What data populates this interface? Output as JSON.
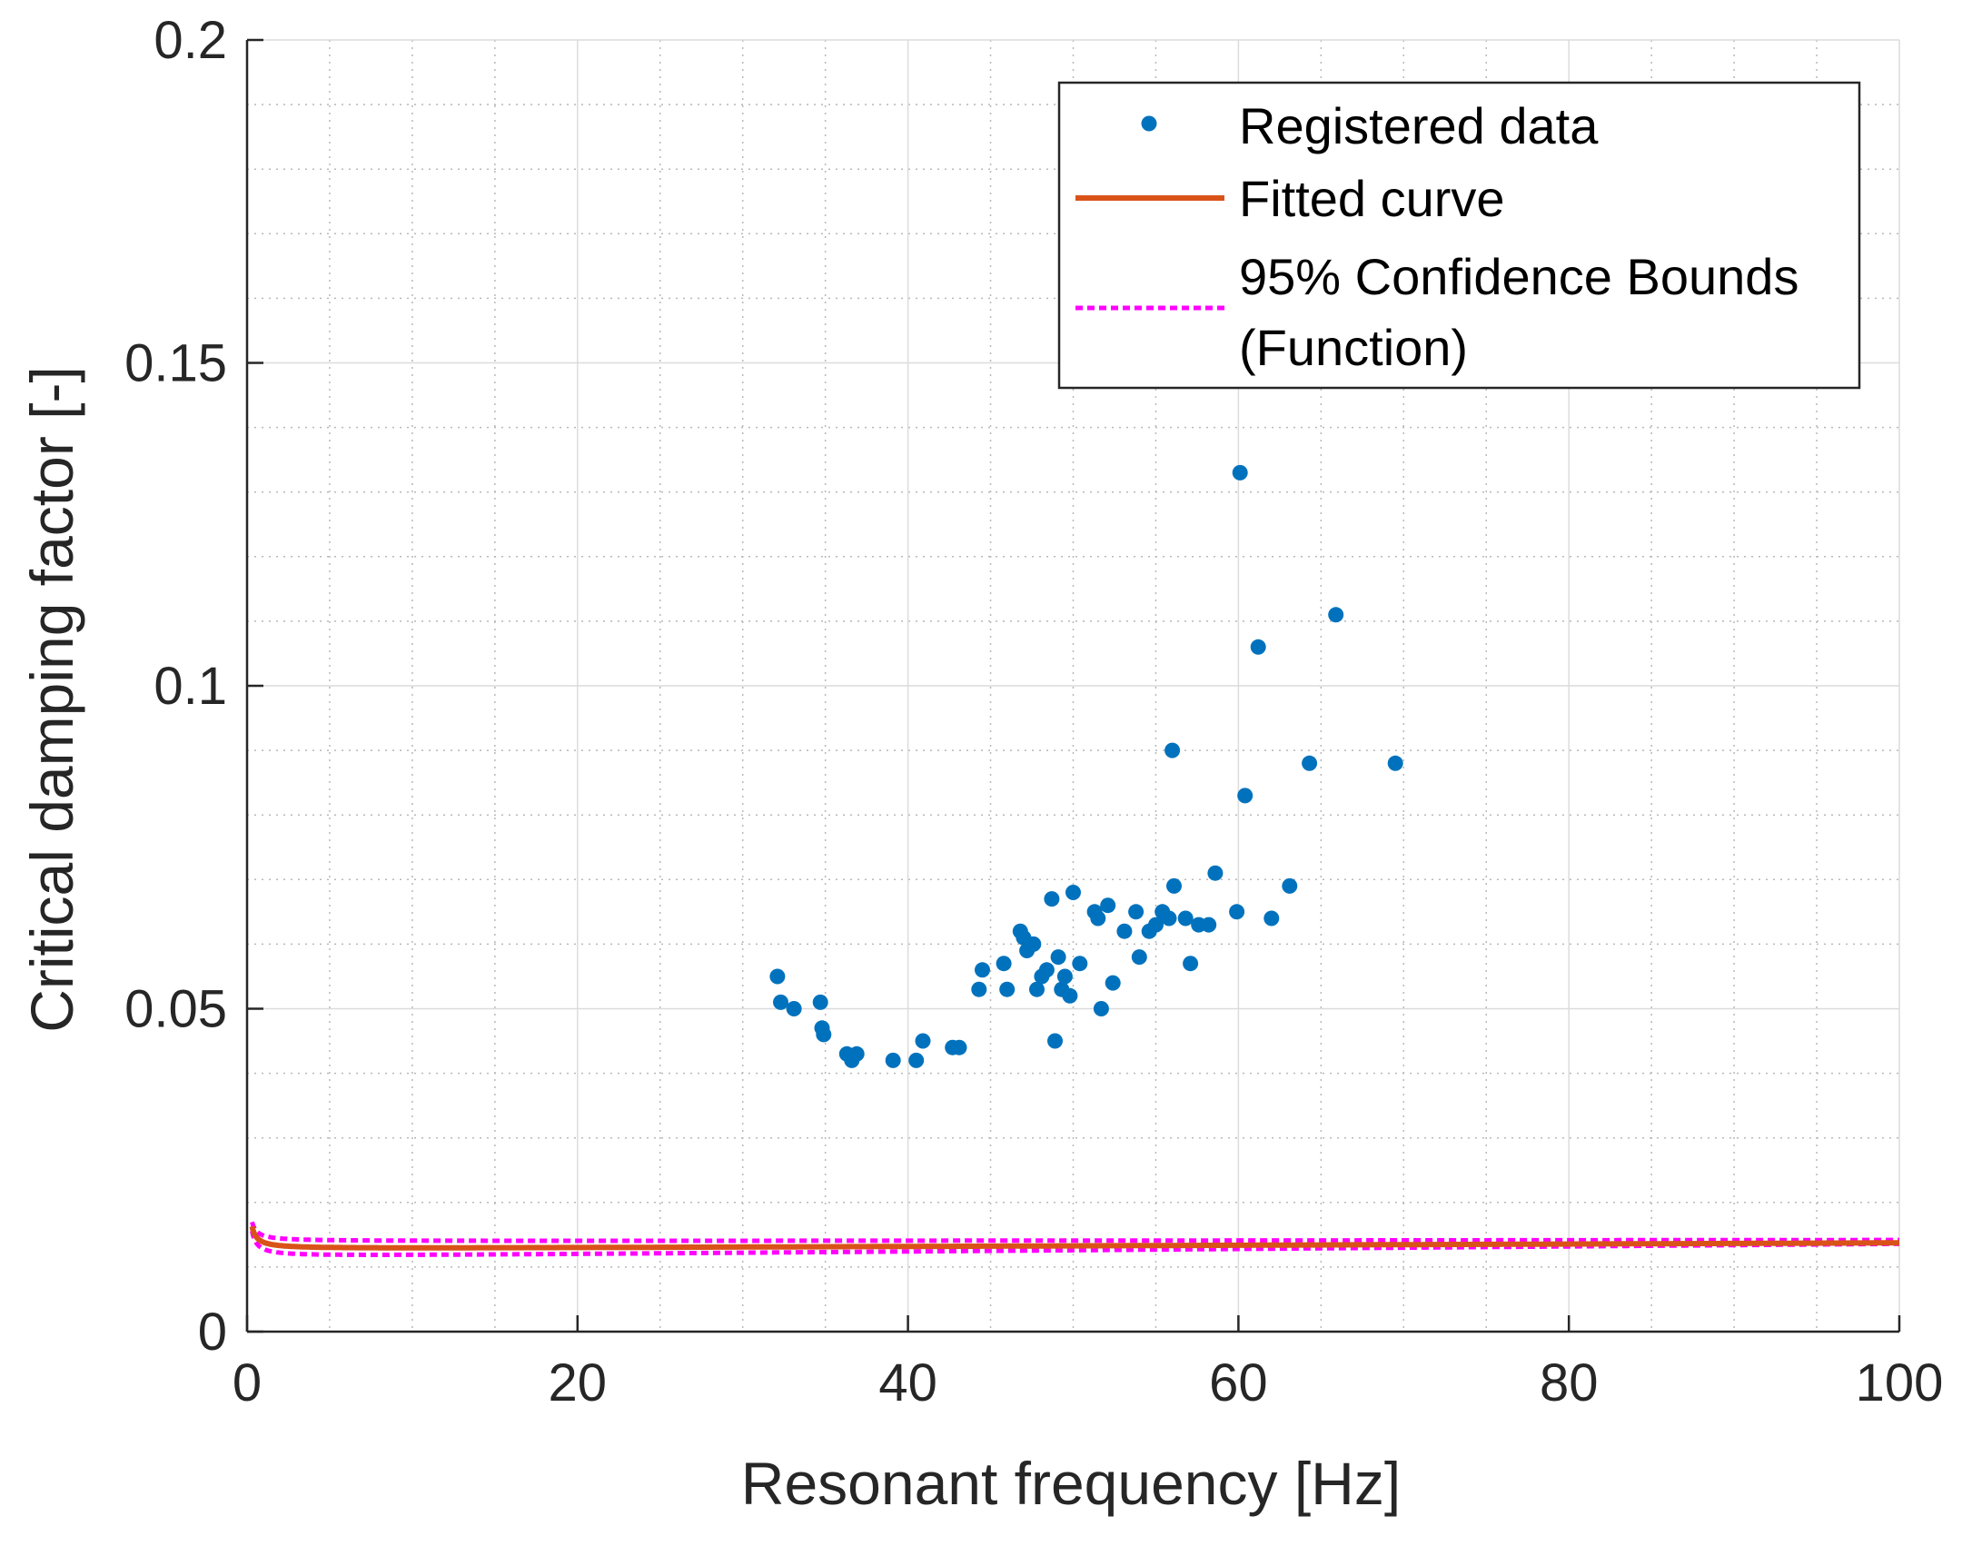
{
  "chart_data": {
    "type": "scatter",
    "title": "",
    "xlabel": "Resonant frequency [Hz]",
    "ylabel": "Critical damping factor [-]",
    "xlim": [
      0,
      100
    ],
    "ylim": [
      0,
      0.2
    ],
    "xticks": [
      0,
      20,
      40,
      60,
      80,
      100
    ],
    "xtick_labels": [
      "0",
      "20",
      "40",
      "60",
      "80",
      "100"
    ],
    "yticks": [
      0,
      0.05,
      0.1,
      0.15,
      0.2
    ],
    "ytick_labels": [
      "0",
      "0.05",
      "0.1",
      "0.15",
      "0.2"
    ],
    "grid": true,
    "minor_grid": true,
    "legend_position": "top-right",
    "colors": {
      "points": "#0072BD",
      "fit": "#D95319",
      "bounds": "#FF00FF"
    },
    "series": [
      {
        "name": "Registered data",
        "kind": "scatter",
        "points": [
          [
            32.1,
            0.055
          ],
          [
            32.3,
            0.051
          ],
          [
            33.1,
            0.05
          ],
          [
            34.7,
            0.051
          ],
          [
            34.8,
            0.047
          ],
          [
            34.9,
            0.046
          ],
          [
            36.3,
            0.043
          ],
          [
            36.6,
            0.042
          ],
          [
            36.9,
            0.043
          ],
          [
            39.1,
            0.042
          ],
          [
            40.5,
            0.042
          ],
          [
            40.9,
            0.045
          ],
          [
            42.7,
            0.044
          ],
          [
            43.1,
            0.044
          ],
          [
            44.3,
            0.053
          ],
          [
            44.5,
            0.056
          ],
          [
            45.8,
            0.057
          ],
          [
            46.0,
            0.053
          ],
          [
            46.8,
            0.062
          ],
          [
            47.0,
            0.061
          ],
          [
            47.2,
            0.059
          ],
          [
            47.4,
            0.06
          ],
          [
            47.6,
            0.06
          ],
          [
            47.8,
            0.053
          ],
          [
            48.1,
            0.055
          ],
          [
            48.4,
            0.056
          ],
          [
            48.7,
            0.067
          ],
          [
            48.9,
            0.045
          ],
          [
            49.1,
            0.058
          ],
          [
            49.3,
            0.053
          ],
          [
            49.5,
            0.055
          ],
          [
            49.8,
            0.052
          ],
          [
            50.0,
            0.068
          ],
          [
            50.4,
            0.057
          ],
          [
            51.3,
            0.065
          ],
          [
            51.5,
            0.064
          ],
          [
            51.7,
            0.05
          ],
          [
            52.1,
            0.066
          ],
          [
            52.4,
            0.054
          ],
          [
            53.1,
            0.062
          ],
          [
            53.8,
            0.065
          ],
          [
            54.0,
            0.058
          ],
          [
            54.6,
            0.062
          ],
          [
            55.0,
            0.063
          ],
          [
            55.4,
            0.065
          ],
          [
            55.8,
            0.064
          ],
          [
            56.1,
            0.069
          ],
          [
            56.0,
            0.09
          ],
          [
            56.8,
            0.064
          ],
          [
            57.1,
            0.057
          ],
          [
            57.6,
            0.063
          ],
          [
            58.2,
            0.063
          ],
          [
            58.6,
            0.071
          ],
          [
            59.9,
            0.065
          ],
          [
            60.1,
            0.133
          ],
          [
            60.4,
            0.083
          ],
          [
            61.2,
            0.106
          ],
          [
            62.0,
            0.064
          ],
          [
            63.1,
            0.069
          ],
          [
            64.3,
            0.088
          ],
          [
            65.9,
            0.111
          ],
          [
            69.5,
            0.088
          ]
        ]
      },
      {
        "name": "Fitted curve",
        "kind": "line",
        "model": {
          "a": 0.00105,
          "b": 9.62e-06,
          "c": 0.01278
        }
      },
      {
        "name": "95% Confidence Bounds (Function)",
        "legend_lines": [
          "95% Confidence Bounds",
          "(Function)"
        ],
        "kind": "band",
        "upper_model": {
          "a": 0.0009,
          "b": 2e-06,
          "c": 0.01398
        },
        "lower_model": {
          "a": 0.0012,
          "b": 2e-05,
          "c": 0.01158
        }
      }
    ]
  }
}
